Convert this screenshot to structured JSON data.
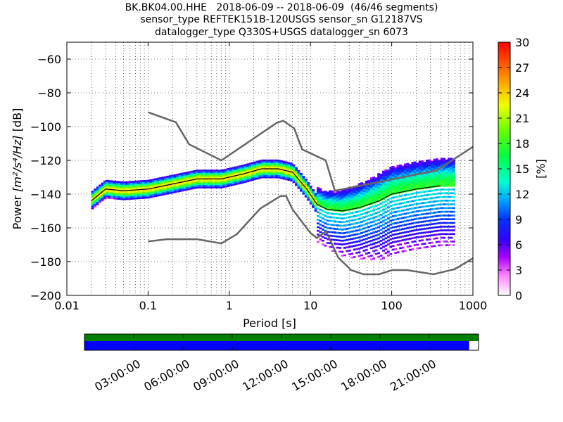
{
  "header": {
    "line1": "BK.BK04.00.HHE   2018-06-09 -- 2018-06-09  (46/46 segments)",
    "line2": "sensor_type REFTEK151B-120USGS sensor_sn G12187VS",
    "line3": "datalogger_type Q330S+USGS datalogger_sn 6073"
  },
  "chart_data": {
    "type": "heatmap",
    "x_scale": "log",
    "xlabel": "Period [s]",
    "ylabel_prefix": "Power ",
    "ylabel_unit": "[m²/s⁴/Hz]",
    "ylabel_suffix": " [dB]",
    "xlim": [
      0.01,
      1000
    ],
    "ylim": [
      -200,
      -50
    ],
    "x_tick_values": [
      0.01,
      0.1,
      1,
      10,
      100,
      1000
    ],
    "x_tick_labels": [
      "0.01",
      "0.1",
      "1",
      "10",
      "100",
      "1000"
    ],
    "y_tick_values": [
      -60,
      -80,
      -100,
      -120,
      -140,
      -160,
      -180,
      -200
    ],
    "y_tick_labels": [
      "−60",
      "−80",
      "−100",
      "−120",
      "−140",
      "−160",
      "−180",
      "−200"
    ],
    "grid": true,
    "colorbar": {
      "label": "[%]",
      "range": [
        0,
        30
      ],
      "ticks": [
        0,
        3,
        6,
        9,
        12,
        15,
        18,
        21,
        24,
        27,
        30
      ],
      "tick_labels": [
        "0",
        "3",
        "6",
        "9",
        "12",
        "15",
        "18",
        "21",
        "24",
        "27",
        "30"
      ]
    },
    "mode_curve": [
      [
        0.02,
        -144
      ],
      [
        0.03,
        -137
      ],
      [
        0.05,
        -138
      ],
      [
        0.1,
        -137
      ],
      [
        0.2,
        -134
      ],
      [
        0.4,
        -131
      ],
      [
        0.8,
        -131
      ],
      [
        1.5,
        -128
      ],
      [
        2.5,
        -125
      ],
      [
        4,
        -125
      ],
      [
        6,
        -127
      ],
      [
        9,
        -137
      ],
      [
        12,
        -146
      ],
      [
        16,
        -149
      ],
      [
        25,
        -150
      ],
      [
        40,
        -148
      ],
      [
        70,
        -144
      ],
      [
        100,
        -140
      ],
      [
        200,
        -137
      ],
      [
        400,
        -135
      ]
    ],
    "nhnm": [
      [
        0.1,
        -91.5
      ],
      [
        0.22,
        -97.4
      ],
      [
        0.32,
        -110.5
      ],
      [
        0.8,
        -120
      ],
      [
        3.8,
        -97.9
      ],
      [
        4.6,
        -96.5
      ],
      [
        6.3,
        -101
      ],
      [
        7.9,
        -113.5
      ],
      [
        15.4,
        -120
      ],
      [
        20,
        -138
      ],
      [
        354.8,
        -126
      ],
      [
        1000,
        -112
      ]
    ],
    "nlnm": [
      [
        0.1,
        -168
      ],
      [
        0.17,
        -166.7
      ],
      [
        0.4,
        -166.7
      ],
      [
        0.8,
        -169.2
      ],
      [
        1.24,
        -163.7
      ],
      [
        2.4,
        -148.6
      ],
      [
        4.3,
        -141.1
      ],
      [
        5,
        -141.1
      ],
      [
        6,
        -149
      ],
      [
        10,
        -163
      ],
      [
        12,
        -166
      ],
      [
        15.6,
        -162
      ],
      [
        21.9,
        -177.5
      ],
      [
        31.6,
        -185
      ],
      [
        45,
        -187.5
      ],
      [
        70,
        -187.5
      ],
      [
        101,
        -185
      ],
      [
        154,
        -185
      ],
      [
        328,
        -187.5
      ],
      [
        600,
        -184.4
      ],
      [
        1000,
        -178
      ]
    ],
    "nlnm_nhnm_note": ""
  },
  "timeline": {
    "tick_labels": [
      "03:00:00",
      "06:00:00",
      "09:00:00",
      "12:00:00",
      "15:00:00",
      "18:00:00",
      "21:00:00"
    ],
    "data_coverage_fraction": 1.0,
    "psd_coverage_fraction": 0.976,
    "data_color": "#008000",
    "psd_color": "#0000ff"
  }
}
